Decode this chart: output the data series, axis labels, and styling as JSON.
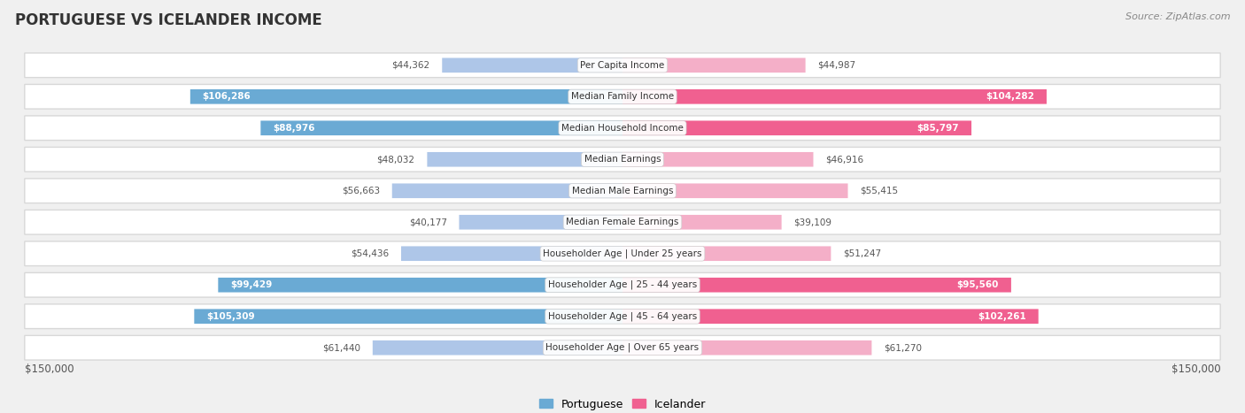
{
  "title": "PORTUGUESE VS ICELANDER INCOME",
  "source": "Source: ZipAtlas.com",
  "categories": [
    "Per Capita Income",
    "Median Family Income",
    "Median Household Income",
    "Median Earnings",
    "Median Male Earnings",
    "Median Female Earnings",
    "Householder Age | Under 25 years",
    "Householder Age | 25 - 44 years",
    "Householder Age | 45 - 64 years",
    "Householder Age | Over 65 years"
  ],
  "portuguese_values": [
    44362,
    106286,
    88976,
    48032,
    56663,
    40177,
    54436,
    99429,
    105309,
    61440
  ],
  "icelander_values": [
    44987,
    104282,
    85797,
    46916,
    55415,
    39109,
    51247,
    95560,
    102261,
    61270
  ],
  "portuguese_labels": [
    "$44,362",
    "$106,286",
    "$88,976",
    "$48,032",
    "$56,663",
    "$40,177",
    "$54,436",
    "$99,429",
    "$105,309",
    "$61,440"
  ],
  "icelander_labels": [
    "$44,987",
    "$104,282",
    "$85,797",
    "$46,916",
    "$55,415",
    "$39,109",
    "$51,247",
    "$95,560",
    "$102,261",
    "$61,270"
  ],
  "portuguese_color_light": "#aec6e8",
  "portuguese_color_dark": "#6aaad4",
  "icelander_color_light": "#f4afc8",
  "icelander_color_dark": "#f06090",
  "inside_threshold": 70000,
  "max_value": 150000,
  "bg_color": "#f0f0f0",
  "row_bg": "#ffffff",
  "row_border": "#d8d8d8",
  "label_inside": "#ffffff",
  "label_outside": "#555555"
}
